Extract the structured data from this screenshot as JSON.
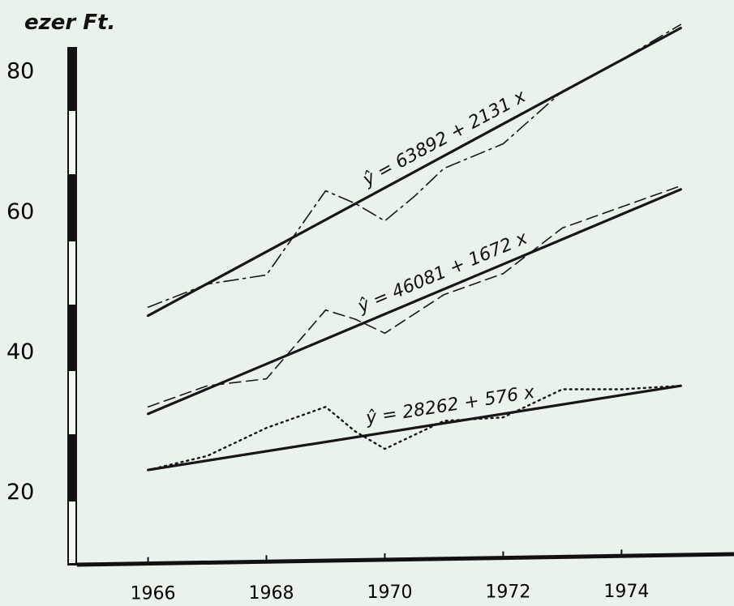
{
  "chart_data": {
    "type": "line",
    "ylabel": "ezer Ft.",
    "xlabel": "",
    "x_ticks": [
      "1966",
      "1968",
      "1970",
      "1972",
      "1974"
    ],
    "y_ticks": [
      "20",
      "40",
      "60",
      "80"
    ],
    "xlim": [
      1964.8,
      1975.9
    ],
    "ylim": [
      9.5,
      90
    ],
    "series": [
      {
        "style": "dash-dot",
        "x": [
          1966,
          1967,
          1968,
          1969,
          1969.5,
          1970,
          1970.5,
          1971,
          1972,
          1973,
          1974,
          1975
        ],
        "y": [
          46.2,
          49.5,
          50.8,
          62.8,
          61.0,
          58.5,
          62.0,
          66.0,
          69.5,
          77.0,
          81.5,
          86.5
        ]
      },
      {
        "style": "solid-fit",
        "equation": "ŷ = 63892 + 2131 x",
        "x": [
          1966,
          1975
        ],
        "y": [
          45.0,
          86.0
        ]
      },
      {
        "style": "dashed",
        "x": [
          1966,
          1967,
          1968,
          1969,
          1969.5,
          1970,
          1971,
          1972,
          1973,
          1974,
          1975
        ],
        "y": [
          32.0,
          35.0,
          36.0,
          45.8,
          44.5,
          42.5,
          48.0,
          51.0,
          57.5,
          60.5,
          63.5
        ]
      },
      {
        "style": "solid-fit",
        "equation": "ŷ = 46081 + 1672 x",
        "x": [
          1966,
          1975
        ],
        "y": [
          31.0,
          63.0
        ]
      },
      {
        "style": "dotted",
        "x": [
          1966,
          1967,
          1968,
          1969,
          1969.5,
          1970,
          1971,
          1972,
          1973,
          1974,
          1975
        ],
        "y": [
          23.0,
          25.0,
          29.0,
          32.0,
          28.5,
          26.0,
          30.0,
          30.5,
          34.5,
          34.5,
          35.0
        ]
      },
      {
        "style": "solid-fit",
        "equation": "ŷ = 28262 + 576 x",
        "x": [
          1966,
          1975
        ],
        "y": [
          23.0,
          35.0
        ]
      }
    ],
    "grid": false,
    "legend": "none"
  }
}
